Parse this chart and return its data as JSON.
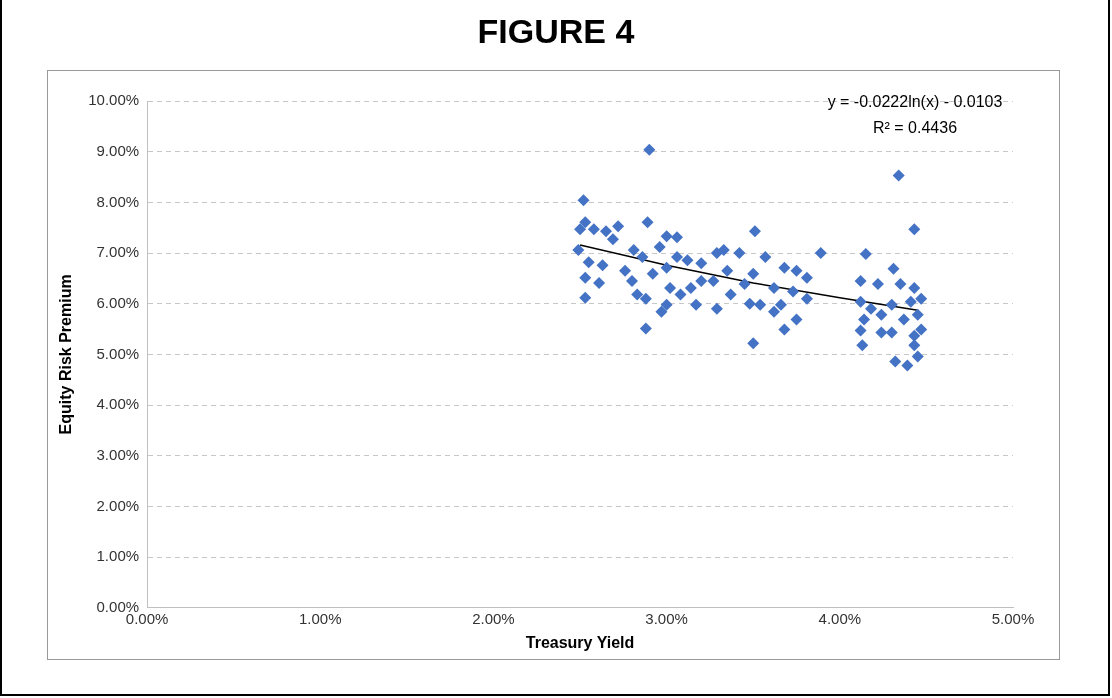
{
  "chart_data": {
    "type": "scatter",
    "title": "FIGURE 4",
    "xlabel": "Treasury Yield",
    "ylabel": "Equity Risk Premium",
    "annotations": [
      "y = -0.0222ln(x) - 0.0103",
      "R² = 0.4436"
    ],
    "xlim": [
      0,
      0.05
    ],
    "ylim": [
      0,
      0.1
    ],
    "xticks": [
      {
        "value": 0,
        "label": "0.00%"
      },
      {
        "value": 0.01,
        "label": "1.00%"
      },
      {
        "value": 0.02,
        "label": "2.00%"
      },
      {
        "value": 0.03,
        "label": "3.00%"
      },
      {
        "value": 0.04,
        "label": "4.00%"
      },
      {
        "value": 0.05,
        "label": "5.00%"
      }
    ],
    "yticks": [
      {
        "value": 0,
        "label": "0.00%"
      },
      {
        "value": 0.01,
        "label": "1.00%"
      },
      {
        "value": 0.02,
        "label": "2.00%"
      },
      {
        "value": 0.03,
        "label": "3.00%"
      },
      {
        "value": 0.04,
        "label": "4.00%"
      },
      {
        "value": 0.05,
        "label": "5.00%"
      },
      {
        "value": 0.06,
        "label": "6.00%"
      },
      {
        "value": 0.07,
        "label": "7.00%"
      },
      {
        "value": 0.08,
        "label": "8.00%"
      },
      {
        "value": 0.09,
        "label": "9.00%"
      },
      {
        "value": 0.1,
        "label": "10.00%"
      }
    ],
    "grid": "y",
    "legend": false,
    "marker": "diamond",
    "series": [
      {
        "color": "#4472c4",
        "x": [
          0.0252,
          0.025,
          0.0253,
          0.0258,
          0.0265,
          0.0272,
          0.0269,
          0.0249,
          0.0255,
          0.0263,
          0.0253,
          0.0261,
          0.0253,
          0.0289,
          0.029,
          0.0288,
          0.028,
          0.0283,
          0.0288,
          0.0296,
          0.03,
          0.0306,
          0.0306,
          0.03,
          0.0292,
          0.0286,
          0.0281,
          0.0276,
          0.0302,
          0.0308,
          0.0297,
          0.03,
          0.0314,
          0.0317,
          0.0312,
          0.032,
          0.0329,
          0.0329,
          0.0333,
          0.0342,
          0.0335,
          0.0337,
          0.0327,
          0.0351,
          0.0357,
          0.035,
          0.0345,
          0.0348,
          0.0354,
          0.0362,
          0.0362,
          0.035,
          0.0368,
          0.0375,
          0.0381,
          0.0373,
          0.0368,
          0.0375,
          0.0366,
          0.0381,
          0.0389,
          0.032,
          0.0434,
          0.0443,
          0.0415,
          0.0431,
          0.0412,
          0.0422,
          0.0435,
          0.0443,
          0.0412,
          0.0418,
          0.043,
          0.0441,
          0.0447,
          0.0414,
          0.0424,
          0.0437,
          0.0445,
          0.0412,
          0.0424,
          0.043,
          0.0443,
          0.0447,
          0.0413,
          0.0443,
          0.0445,
          0.0432,
          0.0439
        ],
        "values": [
          0.0804,
          0.0747,
          0.0761,
          0.0747,
          0.0743,
          0.0753,
          0.0727,
          0.0706,
          0.0682,
          0.0676,
          0.0651,
          0.0641,
          0.0612,
          0.0761,
          0.0904,
          0.0551,
          0.0645,
          0.0618,
          0.061,
          0.0712,
          0.0733,
          0.0731,
          0.0692,
          0.0671,
          0.0659,
          0.0692,
          0.0706,
          0.0665,
          0.0631,
          0.0618,
          0.0584,
          0.0598,
          0.0631,
          0.0598,
          0.0686,
          0.068,
          0.059,
          0.07,
          0.0706,
          0.07,
          0.0665,
          0.0618,
          0.0645,
          0.0743,
          0.0692,
          0.0659,
          0.0639,
          0.06,
          0.0598,
          0.0584,
          0.0631,
          0.0522,
          0.0671,
          0.0665,
          0.0651,
          0.0624,
          0.0549,
          0.0569,
          0.0598,
          0.061,
          0.07,
          0.0645,
          0.0853,
          0.0747,
          0.0698,
          0.0669,
          0.0645,
          0.0639,
          0.0639,
          0.0631,
          0.0604,
          0.059,
          0.0598,
          0.0604,
          0.061,
          0.0569,
          0.0578,
          0.0569,
          0.0578,
          0.0547,
          0.0543,
          0.0543,
          0.0537,
          0.0549,
          0.0518,
          0.0518,
          0.0496,
          0.0486,
          0.0478
        ]
      },
      {
        "type": "line",
        "marker": "none",
        "color": "#000000",
        "x": [
          0.025,
          0.03,
          0.035,
          0.04,
          0.0445
        ],
        "values": [
          0.0716,
          0.0676,
          0.0641,
          0.0612,
          0.0587
        ]
      }
    ]
  }
}
